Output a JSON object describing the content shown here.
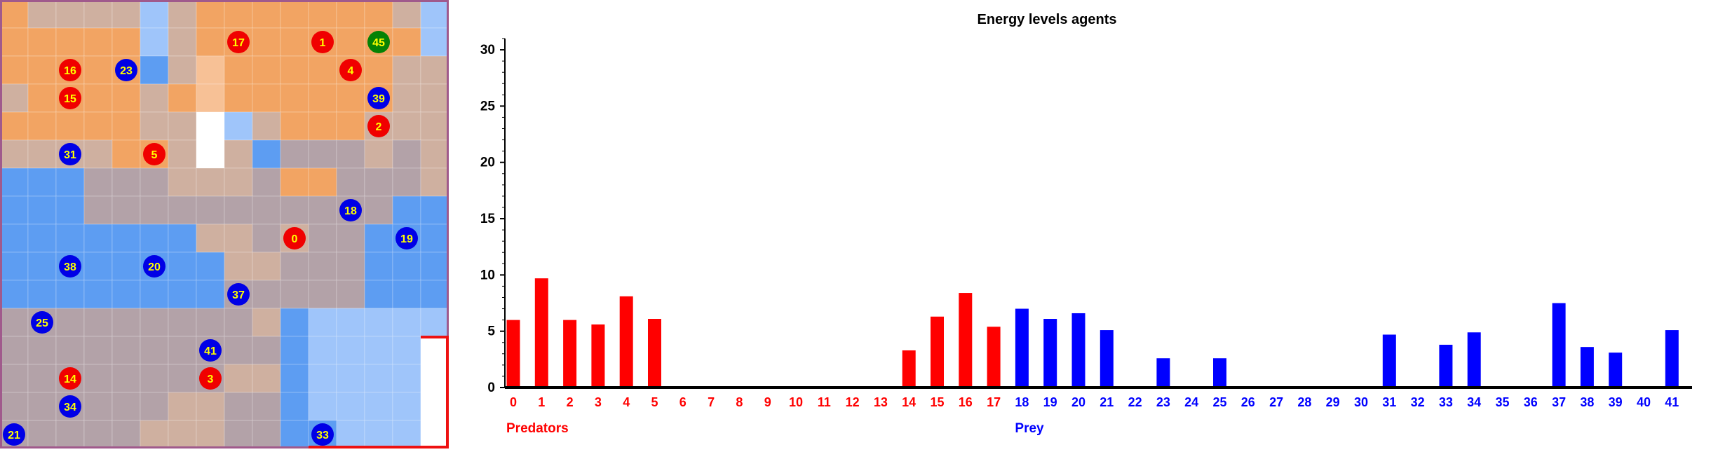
{
  "grid": {
    "rows": 16,
    "cols": 16,
    "palette": {
      "O": "#f2a463",
      "P": "#f7c196",
      "T": "#cfb0a0",
      "G": "#b3a2a8",
      "B": "#5d9df2",
      "L": "#9fc5fa",
      "W": "#ffffff"
    },
    "cells": [
      "OTTTTLTOOOOOOOTL",
      "OOOOOLTOOOOOOOOL",
      "OOOOOBTPOOOOOOTT",
      "TOOOOTOPOOOOOOTT",
      "OOOOOTTWLTOOOTTT",
      "TTTTOOTWTBGGGTGT",
      "BBBGGGTTTGOOGGGT",
      "BBBGGGGGGGGGGGBB",
      "BBBBBBBTTGTGGBBB",
      "BBBBBBBBTTGGGBBB",
      "BBBBBBBBGGGGGBBB",
      "GGGGGGGGGTBLLLLL",
      "GGGGGGGGGGBLLLLW",
      "GGGGGGGGTTBLLLLW",
      "GGGGGGTTGGBLLLLW",
      "GGGGGTTTGGBBLLLW"
    ],
    "agents": [
      {
        "id": "17",
        "type": "predator",
        "col": 8,
        "row": 1
      },
      {
        "id": "1",
        "type": "predator",
        "col": 11,
        "row": 1
      },
      {
        "id": "45",
        "type": "special",
        "col": 13,
        "row": 1
      },
      {
        "id": "16",
        "type": "predator",
        "col": 2,
        "row": 2
      },
      {
        "id": "23",
        "type": "prey",
        "col": 4,
        "row": 2
      },
      {
        "id": "4",
        "type": "predator",
        "col": 12,
        "row": 2
      },
      {
        "id": "15",
        "type": "predator",
        "col": 2,
        "row": 3
      },
      {
        "id": "39",
        "type": "prey",
        "col": 13,
        "row": 3
      },
      {
        "id": "2",
        "type": "predator",
        "col": 13,
        "row": 4
      },
      {
        "id": "31",
        "type": "prey",
        "col": 2,
        "row": 5
      },
      {
        "id": "5",
        "type": "predator",
        "col": 5,
        "row": 5
      },
      {
        "id": "18",
        "type": "prey",
        "col": 12,
        "row": 7
      },
      {
        "id": "0",
        "type": "predator",
        "col": 10,
        "row": 8
      },
      {
        "id": "19",
        "type": "prey",
        "col": 14,
        "row": 8
      },
      {
        "id": "38",
        "type": "prey",
        "col": 2,
        "row": 9
      },
      {
        "id": "20",
        "type": "prey",
        "col": 5,
        "row": 9
      },
      {
        "id": "37",
        "type": "prey",
        "col": 8,
        "row": 10
      },
      {
        "id": "25",
        "type": "prey",
        "col": 1,
        "row": 11
      },
      {
        "id": "41",
        "type": "prey",
        "col": 7,
        "row": 12
      },
      {
        "id": "14",
        "type": "predator",
        "col": 2,
        "row": 13
      },
      {
        "id": "3",
        "type": "predator",
        "col": 7,
        "row": 13
      },
      {
        "id": "34",
        "type": "prey",
        "col": 2,
        "row": 14
      },
      {
        "id": "21",
        "type": "prey",
        "col": 0,
        "row": 15
      },
      {
        "id": "33",
        "type": "prey",
        "col": 11,
        "row": 15
      }
    ],
    "colors": {
      "predator": "#f00000",
      "prey": "#0000e6",
      "special": "#058205",
      "label": "#ffff00"
    }
  },
  "chart_data": {
    "type": "bar",
    "title": "Energy levels agents",
    "ylim": [
      0,
      31
    ],
    "yticks": [
      0,
      5,
      10,
      15,
      20,
      25,
      30
    ],
    "categories": [
      "0",
      "1",
      "2",
      "3",
      "4",
      "5",
      "6",
      "7",
      "8",
      "9",
      "10",
      "11",
      "12",
      "13",
      "14",
      "15",
      "16",
      "17",
      "18",
      "19",
      "20",
      "21",
      "22",
      "23",
      "24",
      "25",
      "26",
      "27",
      "28",
      "29",
      "30",
      "31",
      "32",
      "33",
      "34",
      "35",
      "36",
      "37",
      "38",
      "39",
      "40",
      "41"
    ],
    "values": [
      6.0,
      9.7,
      6.0,
      5.6,
      8.1,
      6.1,
      0,
      0,
      0,
      0,
      0,
      0,
      0,
      0,
      3.3,
      6.3,
      8.4,
      5.4,
      7.0,
      6.1,
      6.6,
      5.1,
      0,
      2.6,
      0,
      2.6,
      0,
      0,
      0,
      0,
      0,
      4.7,
      0,
      3.8,
      4.9,
      0,
      0,
      7.5,
      3.6,
      3.1,
      0,
      5.1
    ],
    "groups": [
      {
        "name": "Predators",
        "from": 0,
        "to": 17,
        "color": "#ff0000"
      },
      {
        "name": "Prey",
        "from": 18,
        "to": 41,
        "color": "#0000ff"
      }
    ],
    "grid": false
  }
}
